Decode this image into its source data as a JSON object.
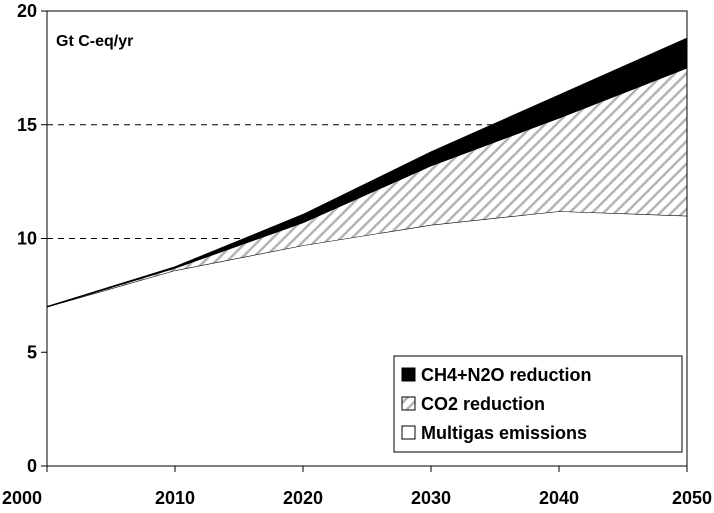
{
  "chart_data": {
    "type": "area",
    "title": "",
    "xlabel": "",
    "ylabel": "",
    "unit_label": "Gt C-eq/yr",
    "x": [
      2000,
      2010,
      2020,
      2030,
      2040,
      2050
    ],
    "xlim": [
      2000,
      2050
    ],
    "ylim": [
      0,
      20
    ],
    "xticks": [
      "2000",
      "2010",
      "2020",
      "2030",
      "2040",
      "2050"
    ],
    "yticks": [
      "0",
      "5",
      "10",
      "15",
      "20"
    ],
    "gridlines_y": [
      10,
      15
    ],
    "stacked": true,
    "series": [
      {
        "name": "Multigas emissions",
        "values": [
          7.0,
          8.6,
          9.7,
          10.6,
          11.2,
          11.0
        ],
        "fill": "#ffffff",
        "pattern": "none"
      },
      {
        "name": "CO2 reduction",
        "values": [
          0.0,
          0.1,
          1.0,
          2.6,
          4.1,
          6.5
        ],
        "fill": "#c0c0c0",
        "pattern": "diagonal-hatch"
      },
      {
        "name": "CH4+N2O reduction",
        "values": [
          0.0,
          0.05,
          0.35,
          0.6,
          1.0,
          1.3
        ],
        "fill": "#000000",
        "pattern": "solid"
      }
    ],
    "legend": {
      "position": "bottom-right",
      "entries": [
        "CH4+N2O reduction",
        "CO2 reduction",
        "Multigas emissions"
      ]
    }
  }
}
